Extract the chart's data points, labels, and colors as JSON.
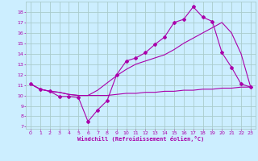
{
  "xlabel": "Windchill (Refroidissement éolien,°C)",
  "bg_color": "#cceeff",
  "grid_color": "#aacccc",
  "line_color": "#aa00aa",
  "x_ticks": [
    0,
    1,
    2,
    3,
    4,
    5,
    6,
    7,
    8,
    9,
    10,
    11,
    12,
    13,
    14,
    15,
    16,
    17,
    18,
    19,
    20,
    21,
    22,
    23
  ],
  "y_ticks": [
    7,
    8,
    9,
    10,
    11,
    12,
    13,
    14,
    15,
    16,
    17,
    18
  ],
  "ylim": [
    6.8,
    19.0
  ],
  "xlim": [
    -0.5,
    23.5
  ],
  "series1_x": [
    0,
    1,
    2,
    3,
    4,
    5,
    6,
    7,
    8,
    9,
    10,
    11,
    12,
    13,
    14,
    15,
    16,
    17,
    18,
    19,
    20,
    21,
    22,
    23
  ],
  "series1_y": [
    11.1,
    10.6,
    10.4,
    9.9,
    9.9,
    9.8,
    7.5,
    8.6,
    9.5,
    12.0,
    13.3,
    13.6,
    14.1,
    14.9,
    15.6,
    17.0,
    17.3,
    18.5,
    17.5,
    17.1,
    14.1,
    12.7,
    11.1,
    10.8
  ],
  "series2_x": [
    0,
    1,
    2,
    3,
    4,
    5,
    6,
    7,
    8,
    9,
    10,
    11,
    12,
    13,
    14,
    15,
    16,
    17,
    18,
    19,
    20,
    21,
    22,
    23
  ],
  "series2_y": [
    11.1,
    10.6,
    10.4,
    10.3,
    10.1,
    10.0,
    10.0,
    10.0,
    10.0,
    10.1,
    10.2,
    10.2,
    10.3,
    10.3,
    10.4,
    10.4,
    10.5,
    10.5,
    10.6,
    10.6,
    10.7,
    10.7,
    10.8,
    10.8
  ],
  "series3_x": [
    0,
    1,
    2,
    3,
    4,
    5,
    6,
    7,
    8,
    9,
    10,
    11,
    12,
    13,
    14,
    15,
    16,
    17,
    18,
    19,
    20,
    21,
    22,
    23
  ],
  "series3_y": [
    11.1,
    10.6,
    10.4,
    10.3,
    10.1,
    10.0,
    10.0,
    10.5,
    11.2,
    11.9,
    12.5,
    13.0,
    13.3,
    13.6,
    13.9,
    14.4,
    15.0,
    15.5,
    16.0,
    16.5,
    17.0,
    16.0,
    14.0,
    10.8
  ]
}
